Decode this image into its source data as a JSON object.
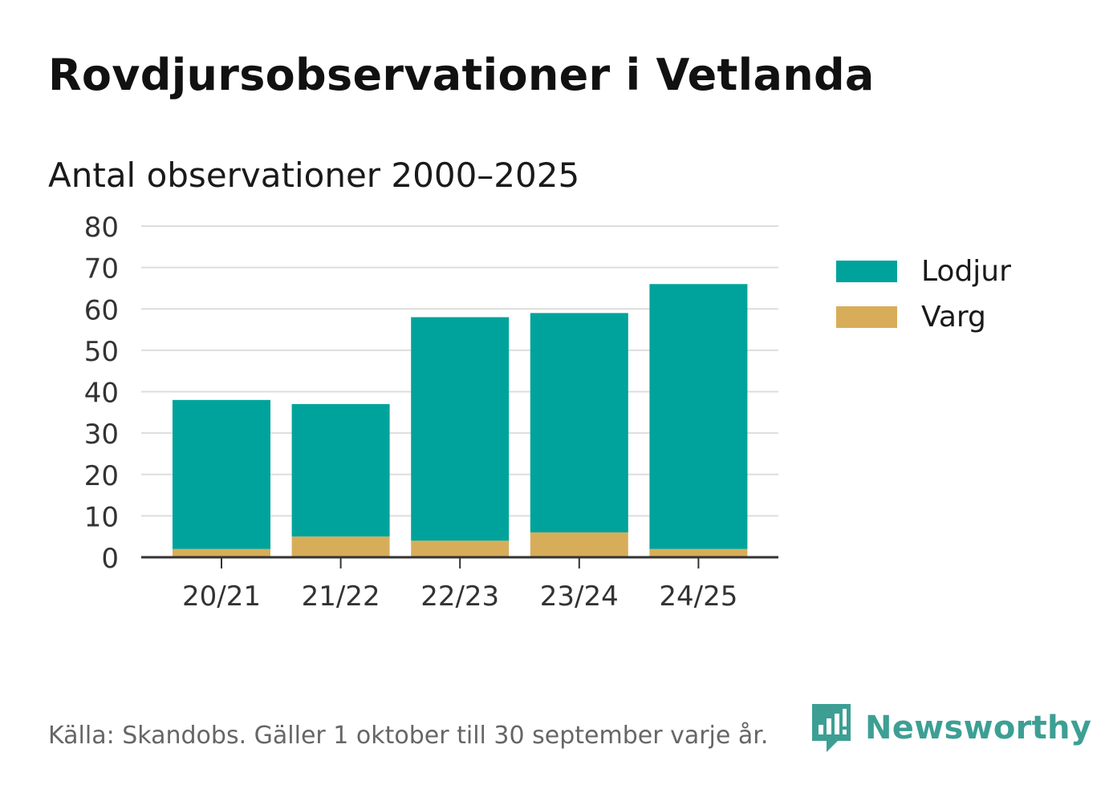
{
  "header": {
    "title": "Rovdjursobservationer i Vetlanda",
    "subtitle": "Antal observationer 2000–2025"
  },
  "colors": {
    "lodjur": "#00a39b",
    "varg": "#d8ad5a",
    "grid": "#dddddd",
    "axis": "#333333",
    "brand": "#3d9f94"
  },
  "chart_data": {
    "type": "bar",
    "stacked": true,
    "title": "Antal observationer 2000–2025",
    "xlabel": "",
    "ylabel": "",
    "categories": [
      "20/21",
      "21/22",
      "22/23",
      "23/24",
      "24/25"
    ],
    "series": [
      {
        "name": "Varg",
        "color": "#d8ad5a",
        "values": [
          2,
          5,
          4,
          6,
          2
        ]
      },
      {
        "name": "Lodjur",
        "color": "#00a39b",
        "values": [
          36,
          32,
          54,
          53,
          64
        ]
      }
    ],
    "ylim": [
      0,
      80
    ],
    "yticks": [
      0,
      10,
      20,
      30,
      40,
      50,
      60,
      70,
      80
    ],
    "grid": true,
    "legend_position": "right"
  },
  "legend": {
    "items": [
      {
        "label": "Lodjur",
        "color": "#00a39b"
      },
      {
        "label": "Varg",
        "color": "#d8ad5a"
      }
    ]
  },
  "footer": {
    "source": "Källa: Skandobs. Gäller 1 oktober till 30 september varje år.",
    "brand_name": "Newsworthy",
    "brand_icon": "newsworthy-logo-icon"
  }
}
